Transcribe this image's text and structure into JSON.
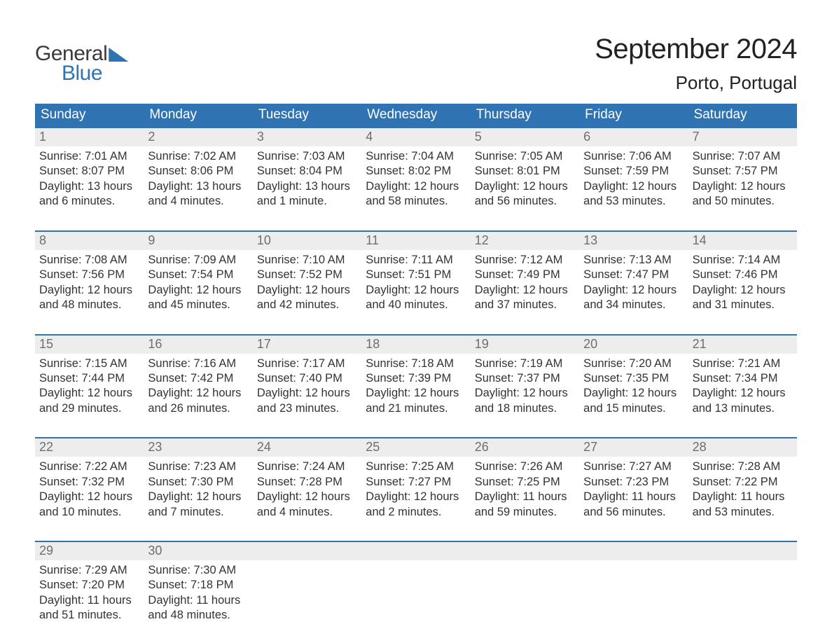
{
  "logo": {
    "top": "General",
    "bottom": "Blue"
  },
  "title": "September 2024",
  "location": "Porto, Portugal",
  "colors": {
    "header_bg": "#2f73b3",
    "header_text": "#ffffff",
    "daynum_bg": "#ededed",
    "daynum_text": "#6e6e6e",
    "body_text": "#333333",
    "border": "#2f73b3",
    "background": "#ffffff"
  },
  "typography": {
    "title_fontsize": 40,
    "location_fontsize": 26,
    "weekday_fontsize": 19,
    "daynum_fontsize": 18,
    "body_fontsize": 16.5,
    "font_family": "Arial"
  },
  "weekdays": [
    "Sunday",
    "Monday",
    "Tuesday",
    "Wednesday",
    "Thursday",
    "Friday",
    "Saturday"
  ],
  "weeks": [
    [
      {
        "n": "1",
        "sunrise": "Sunrise: 7:01 AM",
        "sunset": "Sunset: 8:07 PM",
        "d1": "Daylight: 13 hours",
        "d2": "and 6 minutes."
      },
      {
        "n": "2",
        "sunrise": "Sunrise: 7:02 AM",
        "sunset": "Sunset: 8:06 PM",
        "d1": "Daylight: 13 hours",
        "d2": "and 4 minutes."
      },
      {
        "n": "3",
        "sunrise": "Sunrise: 7:03 AM",
        "sunset": "Sunset: 8:04 PM",
        "d1": "Daylight: 13 hours",
        "d2": "and 1 minute."
      },
      {
        "n": "4",
        "sunrise": "Sunrise: 7:04 AM",
        "sunset": "Sunset: 8:02 PM",
        "d1": "Daylight: 12 hours",
        "d2": "and 58 minutes."
      },
      {
        "n": "5",
        "sunrise": "Sunrise: 7:05 AM",
        "sunset": "Sunset: 8:01 PM",
        "d1": "Daylight: 12 hours",
        "d2": "and 56 minutes."
      },
      {
        "n": "6",
        "sunrise": "Sunrise: 7:06 AM",
        "sunset": "Sunset: 7:59 PM",
        "d1": "Daylight: 12 hours",
        "d2": "and 53 minutes."
      },
      {
        "n": "7",
        "sunrise": "Sunrise: 7:07 AM",
        "sunset": "Sunset: 7:57 PM",
        "d1": "Daylight: 12 hours",
        "d2": "and 50 minutes."
      }
    ],
    [
      {
        "n": "8",
        "sunrise": "Sunrise: 7:08 AM",
        "sunset": "Sunset: 7:56 PM",
        "d1": "Daylight: 12 hours",
        "d2": "and 48 minutes."
      },
      {
        "n": "9",
        "sunrise": "Sunrise: 7:09 AM",
        "sunset": "Sunset: 7:54 PM",
        "d1": "Daylight: 12 hours",
        "d2": "and 45 minutes."
      },
      {
        "n": "10",
        "sunrise": "Sunrise: 7:10 AM",
        "sunset": "Sunset: 7:52 PM",
        "d1": "Daylight: 12 hours",
        "d2": "and 42 minutes."
      },
      {
        "n": "11",
        "sunrise": "Sunrise: 7:11 AM",
        "sunset": "Sunset: 7:51 PM",
        "d1": "Daylight: 12 hours",
        "d2": "and 40 minutes."
      },
      {
        "n": "12",
        "sunrise": "Sunrise: 7:12 AM",
        "sunset": "Sunset: 7:49 PM",
        "d1": "Daylight: 12 hours",
        "d2": "and 37 minutes."
      },
      {
        "n": "13",
        "sunrise": "Sunrise: 7:13 AM",
        "sunset": "Sunset: 7:47 PM",
        "d1": "Daylight: 12 hours",
        "d2": "and 34 minutes."
      },
      {
        "n": "14",
        "sunrise": "Sunrise: 7:14 AM",
        "sunset": "Sunset: 7:46 PM",
        "d1": "Daylight: 12 hours",
        "d2": "and 31 minutes."
      }
    ],
    [
      {
        "n": "15",
        "sunrise": "Sunrise: 7:15 AM",
        "sunset": "Sunset: 7:44 PM",
        "d1": "Daylight: 12 hours",
        "d2": "and 29 minutes."
      },
      {
        "n": "16",
        "sunrise": "Sunrise: 7:16 AM",
        "sunset": "Sunset: 7:42 PM",
        "d1": "Daylight: 12 hours",
        "d2": "and 26 minutes."
      },
      {
        "n": "17",
        "sunrise": "Sunrise: 7:17 AM",
        "sunset": "Sunset: 7:40 PM",
        "d1": "Daylight: 12 hours",
        "d2": "and 23 minutes."
      },
      {
        "n": "18",
        "sunrise": "Sunrise: 7:18 AM",
        "sunset": "Sunset: 7:39 PM",
        "d1": "Daylight: 12 hours",
        "d2": "and 21 minutes."
      },
      {
        "n": "19",
        "sunrise": "Sunrise: 7:19 AM",
        "sunset": "Sunset: 7:37 PM",
        "d1": "Daylight: 12 hours",
        "d2": "and 18 minutes."
      },
      {
        "n": "20",
        "sunrise": "Sunrise: 7:20 AM",
        "sunset": "Sunset: 7:35 PM",
        "d1": "Daylight: 12 hours",
        "d2": "and 15 minutes."
      },
      {
        "n": "21",
        "sunrise": "Sunrise: 7:21 AM",
        "sunset": "Sunset: 7:34 PM",
        "d1": "Daylight: 12 hours",
        "d2": "and 13 minutes."
      }
    ],
    [
      {
        "n": "22",
        "sunrise": "Sunrise: 7:22 AM",
        "sunset": "Sunset: 7:32 PM",
        "d1": "Daylight: 12 hours",
        "d2": "and 10 minutes."
      },
      {
        "n": "23",
        "sunrise": "Sunrise: 7:23 AM",
        "sunset": "Sunset: 7:30 PM",
        "d1": "Daylight: 12 hours",
        "d2": "and 7 minutes."
      },
      {
        "n": "24",
        "sunrise": "Sunrise: 7:24 AM",
        "sunset": "Sunset: 7:28 PM",
        "d1": "Daylight: 12 hours",
        "d2": "and 4 minutes."
      },
      {
        "n": "25",
        "sunrise": "Sunrise: 7:25 AM",
        "sunset": "Sunset: 7:27 PM",
        "d1": "Daylight: 12 hours",
        "d2": "and 2 minutes."
      },
      {
        "n": "26",
        "sunrise": "Sunrise: 7:26 AM",
        "sunset": "Sunset: 7:25 PM",
        "d1": "Daylight: 11 hours",
        "d2": "and 59 minutes."
      },
      {
        "n": "27",
        "sunrise": "Sunrise: 7:27 AM",
        "sunset": "Sunset: 7:23 PM",
        "d1": "Daylight: 11 hours",
        "d2": "and 56 minutes."
      },
      {
        "n": "28",
        "sunrise": "Sunrise: 7:28 AM",
        "sunset": "Sunset: 7:22 PM",
        "d1": "Daylight: 11 hours",
        "d2": "and 53 minutes."
      }
    ],
    [
      {
        "n": "29",
        "sunrise": "Sunrise: 7:29 AM",
        "sunset": "Sunset: 7:20 PM",
        "d1": "Daylight: 11 hours",
        "d2": "and 51 minutes."
      },
      {
        "n": "30",
        "sunrise": "Sunrise: 7:30 AM",
        "sunset": "Sunset: 7:18 PM",
        "d1": "Daylight: 11 hours",
        "d2": "and 48 minutes."
      },
      {
        "n": "",
        "sunrise": "",
        "sunset": "",
        "d1": "",
        "d2": ""
      },
      {
        "n": "",
        "sunrise": "",
        "sunset": "",
        "d1": "",
        "d2": ""
      },
      {
        "n": "",
        "sunrise": "",
        "sunset": "",
        "d1": "",
        "d2": ""
      },
      {
        "n": "",
        "sunrise": "",
        "sunset": "",
        "d1": "",
        "d2": ""
      },
      {
        "n": "",
        "sunrise": "",
        "sunset": "",
        "d1": "",
        "d2": ""
      }
    ]
  ]
}
